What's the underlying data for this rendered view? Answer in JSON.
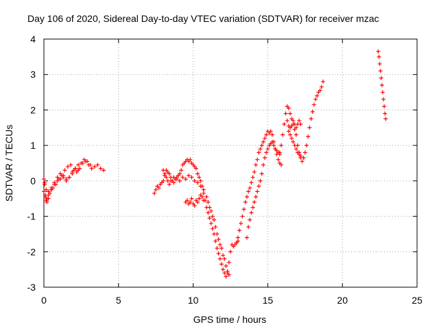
{
  "chart_data": {
    "type": "scatter",
    "title": "Day 106 of 2020, Sidereal Day-to-day VTEC variation (SDTVAR) for receiver mzac",
    "xlabel": "GPS time / hours",
    "ylabel": "SDTVAR / TECUs",
    "xlim": [
      0,
      25
    ],
    "ylim": [
      -3,
      4
    ],
    "xticks": [
      0,
      5,
      10,
      15,
      20,
      25
    ],
    "yticks": [
      -3,
      -2,
      -1,
      0,
      1,
      2,
      3,
      4
    ],
    "xtick_labels": [
      "0",
      "5",
      "10",
      "15",
      "20",
      "25"
    ],
    "ytick_labels": [
      "-3",
      "-2",
      "-1",
      "0",
      "1",
      "2",
      "3",
      "4"
    ],
    "grid": true,
    "marker": "+",
    "color": "#ff0000",
    "series": [
      {
        "name": "SDTVAR",
        "x": [
          0.0,
          0.05,
          0.1,
          0.15,
          0.2,
          0.3,
          0.4,
          0.5,
          0.6,
          0.8,
          1.0,
          1.2,
          1.4,
          1.6,
          1.8,
          2.0,
          2.2,
          2.4,
          2.6,
          2.8,
          3.0,
          3.2,
          3.4,
          3.6,
          3.8,
          4.0,
          0.0,
          0.1,
          0.2,
          0.3,
          0.5,
          0.7,
          0.9,
          1.1,
          1.3,
          1.5,
          1.7,
          1.9,
          2.1,
          2.3,
          2.5,
          2.7,
          2.9,
          3.1,
          0.05,
          0.15,
          0.3,
          0.5,
          0.7,
          0.9,
          1.1,
          1.3,
          1.5,
          1.7,
          1.9,
          2.1,
          2.3,
          7.4,
          7.5,
          7.6,
          7.7,
          7.8,
          7.9,
          8.0,
          8.1,
          8.2,
          8.3,
          8.4,
          8.5,
          8.6,
          8.7,
          8.8,
          8.9,
          9.0,
          9.1,
          9.2,
          9.3,
          9.4,
          9.5,
          9.6,
          9.7,
          9.8,
          9.9,
          10.0,
          10.1,
          10.2,
          10.3,
          10.4,
          10.5,
          10.6,
          10.7,
          10.8,
          10.9,
          11.0,
          11.1,
          11.2,
          11.3,
          11.4,
          11.5,
          11.6,
          11.7,
          11.8,
          11.9,
          12.0,
          12.1,
          12.2,
          12.3,
          12.4,
          12.5,
          12.6,
          12.7,
          12.8,
          12.9,
          13.0,
          8.0,
          8.1,
          8.2,
          8.3,
          8.4,
          8.5,
          8.7,
          8.9,
          9.1,
          9.3,
          9.5,
          9.7,
          9.9,
          10.1,
          10.3,
          10.5,
          10.7,
          10.9,
          11.0,
          11.1,
          11.2,
          11.3,
          11.4,
          11.5,
          11.6,
          11.7,
          11.8,
          11.9,
          12.0,
          12.1,
          12.2,
          12.3,
          12.4,
          9.5,
          9.6,
          9.7,
          9.8,
          9.9,
          10.0,
          10.1,
          10.2,
          10.3,
          10.4,
          10.5,
          10.6,
          10.7,
          12.9,
          13.0,
          13.1,
          13.2,
          13.3,
          13.4,
          13.5,
          13.6,
          13.7,
          13.8,
          13.9,
          14.0,
          14.1,
          14.2,
          14.3,
          14.4,
          14.5,
          14.6,
          14.7,
          14.8,
          14.9,
          15.0,
          15.1,
          15.2,
          15.3,
          15.4,
          15.5,
          15.6,
          15.7,
          15.8,
          15.9,
          13.6,
          13.7,
          13.8,
          13.9,
          14.0,
          14.1,
          14.2,
          14.3,
          14.4,
          14.5,
          14.6,
          14.7,
          14.8,
          14.9,
          15.0,
          15.1,
          15.2,
          15.3,
          15.4,
          15.5,
          15.6,
          15.7,
          15.8,
          15.8,
          15.9,
          16.0,
          16.1,
          16.2,
          16.3,
          16.4,
          16.5,
          16.6,
          16.7,
          16.8,
          16.9,
          17.0,
          17.1,
          17.2,
          17.3,
          17.4,
          17.5,
          17.6,
          17.7,
          17.8,
          17.9,
          18.0,
          18.1,
          18.2,
          18.3,
          18.4,
          18.5,
          18.6,
          18.7,
          16.3,
          16.4,
          16.5,
          16.6,
          16.7,
          16.8,
          16.9,
          17.0,
          17.1,
          17.2,
          16.4,
          16.5,
          16.6,
          16.7,
          16.8,
          16.9,
          17.0,
          17.1,
          17.2,
          22.4,
          22.45,
          22.5,
          22.55,
          22.6,
          22.65,
          22.7,
          22.75,
          22.8,
          22.85,
          22.9
        ],
        "y": [
          0.05,
          -0.1,
          -0.4,
          -0.55,
          -0.6,
          -0.5,
          -0.35,
          -0.25,
          -0.2,
          -0.1,
          0.05,
          0.15,
          0.3,
          0.4,
          0.45,
          0.3,
          0.25,
          0.35,
          0.5,
          0.55,
          0.45,
          0.35,
          0.4,
          0.45,
          0.35,
          0.3,
          -0.3,
          -0.45,
          -0.5,
          -0.4,
          -0.2,
          -0.05,
          0.1,
          0.2,
          0.15,
          0.05,
          0.1,
          0.25,
          0.35,
          0.45,
          0.5,
          0.6,
          0.55,
          0.45,
          -0.05,
          -0.25,
          -0.3,
          -0.25,
          -0.1,
          0.0,
          0.05,
          0.1,
          0.0,
          0.1,
          0.2,
          0.35,
          0.3,
          -0.35,
          -0.25,
          -0.15,
          -0.2,
          -0.1,
          -0.05,
          0.0,
          0.15,
          0.3,
          0.25,
          0.2,
          0.1,
          0.0,
          -0.05,
          0.05,
          0.1,
          0.15,
          0.2,
          0.3,
          0.45,
          0.5,
          0.55,
          0.6,
          0.55,
          0.6,
          0.5,
          0.45,
          0.4,
          0.35,
          0.2,
          0.1,
          0.0,
          -0.15,
          -0.35,
          -0.55,
          -0.75,
          -0.9,
          -1.05,
          -1.2,
          -1.35,
          -1.5,
          -1.7,
          -1.9,
          -2.05,
          -2.2,
          -2.35,
          -2.5,
          -2.6,
          -2.7,
          -2.6,
          -2.3,
          -2.0,
          -1.8,
          -1.85,
          -1.8,
          -1.75,
          -1.7,
          0.3,
          0.2,
          0.1,
          0.0,
          -0.1,
          0.0,
          0.1,
          0.05,
          0.0,
          0.1,
          0.05,
          0.15,
          0.1,
          0.0,
          -0.05,
          -0.15,
          -0.25,
          -0.45,
          -0.6,
          -0.75,
          -0.85,
          -1.0,
          -1.1,
          -1.3,
          -1.5,
          -1.65,
          -1.8,
          -1.9,
          -2.1,
          -2.2,
          -2.4,
          -2.55,
          -2.65,
          -0.6,
          -0.55,
          -0.65,
          -0.6,
          -0.5,
          -0.65,
          -0.7,
          -0.55,
          -0.6,
          -0.5,
          -0.4,
          -0.45,
          -0.55,
          -1.75,
          -1.6,
          -1.4,
          -1.2,
          -1.0,
          -0.8,
          -0.6,
          -0.45,
          -0.3,
          -0.2,
          -0.05,
          0.1,
          0.25,
          0.45,
          0.6,
          0.8,
          0.9,
          1.0,
          1.1,
          1.2,
          1.3,
          1.4,
          1.35,
          1.4,
          1.3,
          1.1,
          0.9,
          0.75,
          0.6,
          0.5,
          0.45,
          -1.6,
          -1.3,
          -1.1,
          -0.9,
          -0.75,
          -0.6,
          -0.45,
          -0.3,
          -0.15,
          0.0,
          0.2,
          0.45,
          0.65,
          0.8,
          0.9,
          1.0,
          1.05,
          1.1,
          1.0,
          0.9,
          0.85,
          0.8,
          0.75,
          0.8,
          1.0,
          1.3,
          1.6,
          1.9,
          2.1,
          2.05,
          1.9,
          1.75,
          1.6,
          1.45,
          1.3,
          1.0,
          0.8,
          0.65,
          0.55,
          0.65,
          0.8,
          1.0,
          1.25,
          1.5,
          1.75,
          1.95,
          2.15,
          2.3,
          2.4,
          2.5,
          2.55,
          2.65,
          2.8,
          1.7,
          1.55,
          1.5,
          1.55,
          1.7,
          1.6,
          1.5,
          1.6,
          1.7,
          1.6,
          1.4,
          1.3,
          1.2,
          1.1,
          1.0,
          0.9,
          0.8,
          0.75,
          0.7,
          3.65,
          3.5,
          3.3,
          3.1,
          2.9,
          2.7,
          2.5,
          2.3,
          2.1,
          1.9,
          1.75
        ]
      }
    ]
  }
}
